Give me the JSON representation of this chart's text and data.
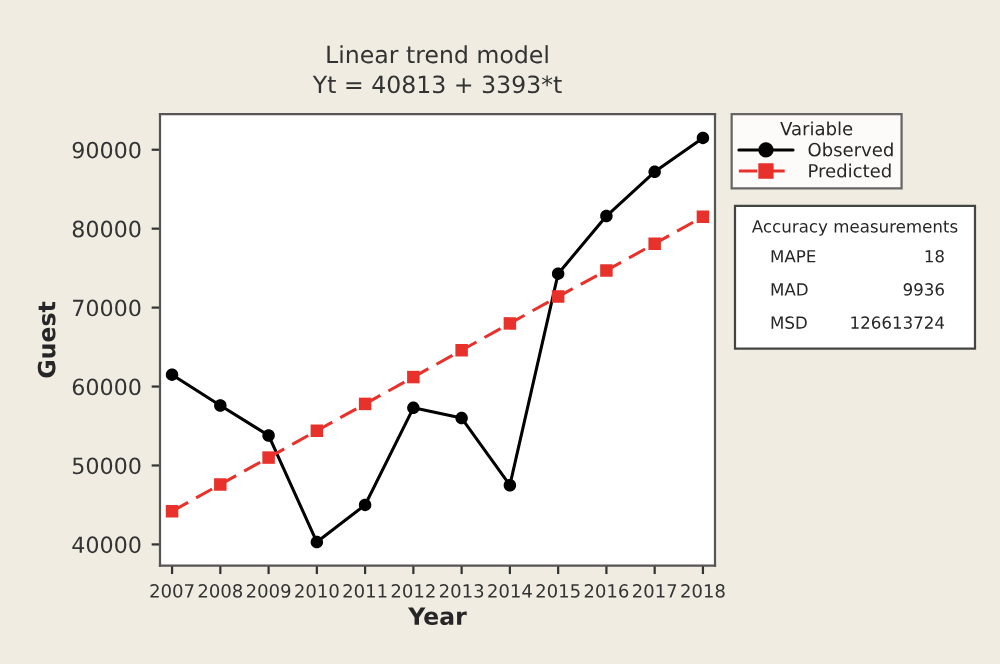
{
  "chart_data": {
    "type": "line",
    "title": "Linear trend model",
    "subtitle": "Yt = 40813 + 3393*t",
    "xlabel": "Year",
    "ylabel": "Guest",
    "categories": [
      "2007",
      "2008",
      "2009",
      "2010",
      "2011",
      "2012",
      "2013",
      "2014",
      "2015",
      "2016",
      "2017",
      "2018"
    ],
    "series": [
      {
        "name": "Observed",
        "color": "#000000",
        "marker": "circle",
        "line_style": "solid",
        "values": [
          61500,
          57600,
          53800,
          40300,
          45000,
          57300,
          56000,
          47500,
          74300,
          81600,
          87200,
          91500
        ]
      },
      {
        "name": "Predicted",
        "color": "#e8312a",
        "marker": "square",
        "line_style": "dashed",
        "values": [
          44200,
          47600,
          51000,
          54400,
          57800,
          61200,
          64600,
          68000,
          71400,
          74700,
          78100,
          81500
        ]
      }
    ],
    "ylim": [
      37300,
      94500
    ],
    "yticks": [
      40000,
      50000,
      60000,
      70000,
      80000,
      90000
    ],
    "legend": "right",
    "legend_title": "Variable",
    "grid": false,
    "annotations": [
      "Accuracy measurements",
      "MAPE",
      "18",
      "MAD",
      "9936",
      "MSD",
      "126613724"
    ]
  }
}
